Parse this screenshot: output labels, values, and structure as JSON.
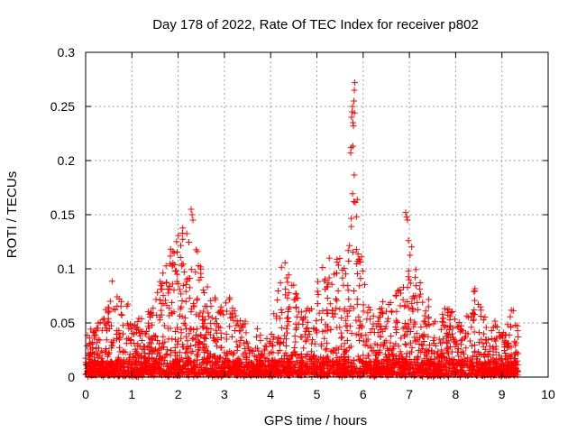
{
  "chart_data": {
    "type": "scatter",
    "title": "Day 178 of 2022, Rate Of TEC Index for receiver p802",
    "xlabel": "GPS time / hours",
    "ylabel": "ROTI / TECUs",
    "xlim": [
      0,
      10
    ],
    "ylim": [
      0,
      0.3
    ],
    "x_ticks": [
      0,
      1,
      2,
      3,
      4,
      5,
      6,
      7,
      8,
      9,
      10
    ],
    "y_ticks": [
      0,
      0.05,
      0.1,
      0.15,
      0.2,
      0.25,
      0.3
    ],
    "y_tick_labels": [
      "0",
      "0.05",
      "0.1",
      "0.15",
      "0.2",
      "0.25",
      "0.3"
    ],
    "grid": true,
    "marker": "+",
    "series_color": "#ff0000",
    "series": [
      {
        "name": "ROTI",
        "envelope_hours": [
          0.0,
          0.1,
          0.25,
          0.45,
          0.55,
          0.7,
          0.9,
          1.1,
          1.4,
          1.7,
          1.9,
          2.05,
          2.2,
          2.3,
          2.45,
          2.7,
          2.9,
          3.1,
          3.3,
          3.45,
          3.55,
          3.7,
          3.85,
          4.05,
          4.25,
          4.45,
          4.7,
          4.9,
          5.05,
          5.3,
          5.45,
          5.6,
          5.72,
          5.8,
          5.9,
          6.05,
          6.2,
          6.45,
          6.65,
          6.85,
          6.95,
          7.1,
          7.3,
          7.5,
          7.6,
          7.7,
          7.85,
          8.0,
          8.2,
          8.45,
          8.7,
          8.9,
          9.05,
          9.2,
          9.3
        ],
        "envelope_roti": [
          0.035,
          0.042,
          0.05,
          0.06,
          0.093,
          0.075,
          0.07,
          0.05,
          0.06,
          0.1,
          0.125,
          0.13,
          0.155,
          0.14,
          0.105,
          0.075,
          0.072,
          0.075,
          0.055,
          0.055,
          0.02,
          0.045,
          0.03,
          0.05,
          0.11,
          0.09,
          0.06,
          0.07,
          0.095,
          0.12,
          0.11,
          0.115,
          0.145,
          0.272,
          0.13,
          0.09,
          0.055,
          0.07,
          0.075,
          0.085,
          0.152,
          0.11,
          0.08,
          0.065,
          0.04,
          0.055,
          0.065,
          0.055,
          0.05,
          0.09,
          0.045,
          0.05,
          0.04,
          0.075,
          0.045
        ],
        "outliers_hours": [
          5.75,
          5.76,
          5.77,
          5.78,
          5.79,
          5.8,
          5.81,
          5.82,
          5.74,
          5.73,
          6.92,
          6.94,
          6.96,
          6.98,
          2.28,
          2.3,
          2.32
        ],
        "outliers_roti": [
          0.24,
          0.245,
          0.25,
          0.235,
          0.232,
          0.255,
          0.265,
          0.272,
          0.212,
          0.207,
          0.152,
          0.148,
          0.145,
          0.126,
          0.155,
          0.15,
          0.145
        ],
        "end_hour": 9.35
      }
    ]
  }
}
